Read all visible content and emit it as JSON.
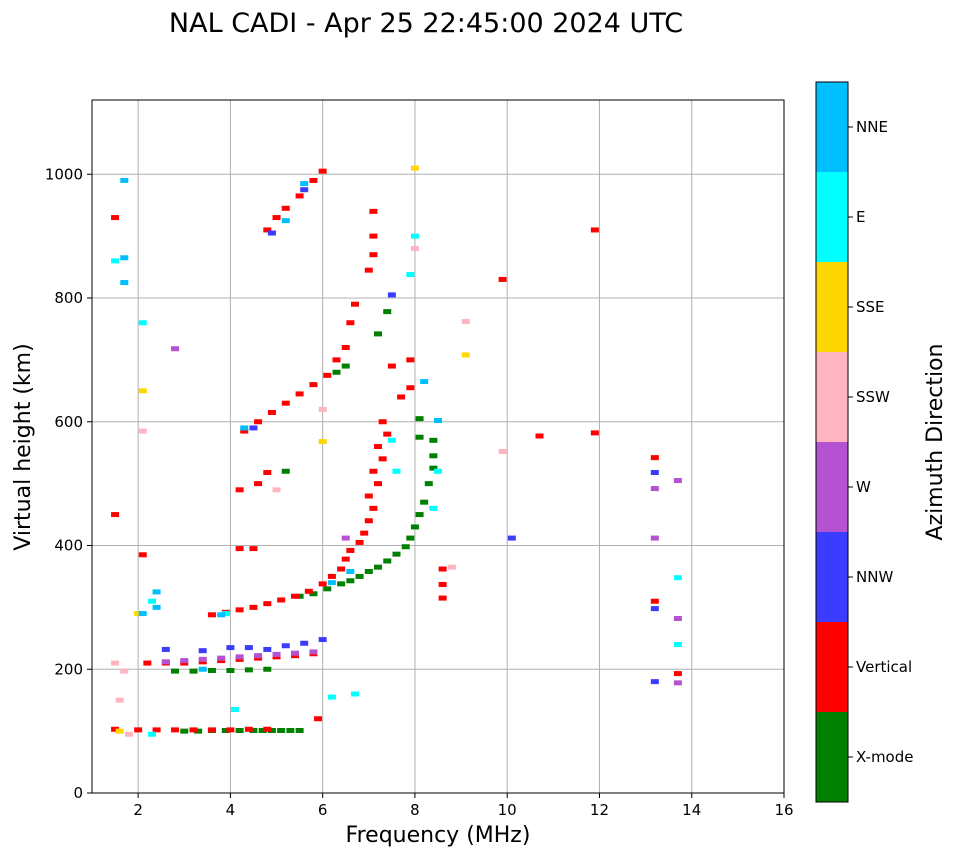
{
  "chart_data": {
    "type": "scatter",
    "title": "NAL CADI - Apr 25 22:45:00 2024 UTC",
    "xlabel": "Frequency (MHz)",
    "ylabel": "Virtual height (km)",
    "xlim": [
      1,
      16
    ],
    "ylim": [
      0,
      1120
    ],
    "xticks": [
      2,
      4,
      6,
      8,
      10,
      12,
      14,
      16
    ],
    "yticks": [
      0,
      200,
      400,
      600,
      800,
      1000
    ],
    "grid": true,
    "colorbar": {
      "label": "Azimuth Direction",
      "categories": [
        {
          "name": "X-mode",
          "color": "#008000"
        },
        {
          "name": "Vertical",
          "color": "#ff0000"
        },
        {
          "name": "NNW",
          "color": "#3c3cff"
        },
        {
          "name": "W",
          "color": "#b452d2"
        },
        {
          "name": "SSW",
          "color": "#ffb4c1"
        },
        {
          "name": "SSE",
          "color": "#ffd700"
        },
        {
          "name": "E",
          "color": "#00ffff"
        },
        {
          "name": "NNE",
          "color": "#00bfff"
        }
      ]
    },
    "series": [
      {
        "name": "X-mode",
        "points": [
          [
            3.0,
            100
          ],
          [
            3.3,
            100
          ],
          [
            3.6,
            101
          ],
          [
            3.9,
            101
          ],
          [
            4.2,
            101
          ],
          [
            4.5,
            101
          ],
          [
            4.7,
            101
          ],
          [
            4.9,
            101
          ],
          [
            5.1,
            101
          ],
          [
            5.3,
            101
          ],
          [
            5.5,
            101
          ],
          [
            2.8,
            197
          ],
          [
            3.2,
            197
          ],
          [
            3.6,
            198
          ],
          [
            4.0,
            198
          ],
          [
            4.4,
            199
          ],
          [
            4.8,
            200
          ],
          [
            5.5,
            318
          ],
          [
            5.8,
            322
          ],
          [
            6.1,
            330
          ],
          [
            6.4,
            338
          ],
          [
            6.6,
            343
          ],
          [
            6.8,
            350
          ],
          [
            7.0,
            358
          ],
          [
            7.2,
            365
          ],
          [
            7.4,
            375
          ],
          [
            7.6,
            386
          ],
          [
            7.8,
            398
          ],
          [
            7.9,
            412
          ],
          [
            8.0,
            430
          ],
          [
            8.1,
            450
          ],
          [
            8.2,
            470
          ],
          [
            8.3,
            500
          ],
          [
            8.4,
            525
          ],
          [
            8.4,
            545
          ],
          [
            8.4,
            570
          ],
          [
            8.1,
            575
          ],
          [
            6.5,
            690
          ],
          [
            6.3,
            680
          ],
          [
            7.2,
            742
          ],
          [
            7.4,
            778
          ],
          [
            8.1,
            605
          ],
          [
            5.2,
            520
          ]
        ]
      },
      {
        "name": "Vertical",
        "points": [
          [
            1.5,
            103
          ],
          [
            2.0,
            102
          ],
          [
            2.4,
            102
          ],
          [
            2.8,
            102
          ],
          [
            3.2,
            102
          ],
          [
            3.6,
            102
          ],
          [
            4.0,
            102
          ],
          [
            4.4,
            103
          ],
          [
            4.8,
            103
          ],
          [
            2.2,
            210
          ],
          [
            2.6,
            210
          ],
          [
            3.0,
            210
          ],
          [
            3.4,
            212
          ],
          [
            3.8,
            214
          ],
          [
            4.2,
            216
          ],
          [
            4.6,
            218
          ],
          [
            5.0,
            220
          ],
          [
            5.4,
            222
          ],
          [
            5.8,
            225
          ],
          [
            3.6,
            288
          ],
          [
            3.9,
            292
          ],
          [
            4.2,
            296
          ],
          [
            4.5,
            300
          ],
          [
            4.8,
            306
          ],
          [
            5.1,
            312
          ],
          [
            5.4,
            318
          ],
          [
            5.7,
            326
          ],
          [
            6.0,
            338
          ],
          [
            6.2,
            350
          ],
          [
            6.4,
            362
          ],
          [
            6.5,
            378
          ],
          [
            6.6,
            392
          ],
          [
            6.8,
            405
          ],
          [
            6.9,
            420
          ],
          [
            7.0,
            440
          ],
          [
            7.1,
            460
          ],
          [
            7.0,
            480
          ],
          [
            7.2,
            500
          ],
          [
            7.1,
            520
          ],
          [
            7.3,
            540
          ],
          [
            7.2,
            560
          ],
          [
            7.4,
            580
          ],
          [
            7.3,
            600
          ],
          [
            4.3,
            585
          ],
          [
            4.6,
            600
          ],
          [
            4.9,
            615
          ],
          [
            5.2,
            630
          ],
          [
            5.5,
            645
          ],
          [
            5.8,
            660
          ],
          [
            6.1,
            675
          ],
          [
            6.3,
            700
          ],
          [
            6.5,
            720
          ],
          [
            6.6,
            760
          ],
          [
            6.7,
            790
          ],
          [
            7.0,
            845
          ],
          [
            7.1,
            870
          ],
          [
            7.1,
            900
          ],
          [
            7.1,
            940
          ],
          [
            4.8,
            910
          ],
          [
            5.0,
            930
          ],
          [
            5.2,
            945
          ],
          [
            5.5,
            965
          ],
          [
            5.8,
            990
          ],
          [
            6.0,
            1005
          ],
          [
            1.5,
            930
          ],
          [
            1.5,
            450
          ],
          [
            2.1,
            385
          ],
          [
            4.2,
            490
          ],
          [
            4.2,
            395
          ],
          [
            4.5,
            395
          ],
          [
            4.6,
            500
          ],
          [
            4.8,
            518
          ],
          [
            7.5,
            690
          ],
          [
            7.7,
            640
          ],
          [
            7.9,
            700
          ],
          [
            7.9,
            655
          ],
          [
            8.6,
            362
          ],
          [
            8.6,
            337
          ],
          [
            8.6,
            315
          ],
          [
            9.9,
            830
          ],
          [
            10.7,
            577
          ],
          [
            11.9,
            910
          ],
          [
            11.9,
            582
          ],
          [
            13.2,
            542
          ],
          [
            13.2,
            310
          ],
          [
            13.7,
            193
          ],
          [
            5.9,
            120
          ]
        ]
      },
      {
        "name": "NNW",
        "points": [
          [
            4.0,
            235
          ],
          [
            4.4,
            235
          ],
          [
            4.8,
            232
          ],
          [
            5.2,
            238
          ],
          [
            5.6,
            242
          ],
          [
            6.0,
            248
          ],
          [
            3.4,
            230
          ],
          [
            2.6,
            232
          ],
          [
            4.5,
            590
          ],
          [
            4.9,
            905
          ],
          [
            5.6,
            975
          ],
          [
            7.5,
            805
          ],
          [
            10.1,
            412
          ],
          [
            13.2,
            518
          ],
          [
            13.2,
            298
          ],
          [
            13.2,
            180
          ]
        ]
      },
      {
        "name": "W",
        "points": [
          [
            2.6,
            212
          ],
          [
            3.0,
            214
          ],
          [
            3.4,
            216
          ],
          [
            3.8,
            218
          ],
          [
            4.2,
            220
          ],
          [
            4.6,
            222
          ],
          [
            5.0,
            224
          ],
          [
            5.4,
            226
          ],
          [
            5.8,
            228
          ],
          [
            2.8,
            718
          ],
          [
            6.5,
            412
          ],
          [
            13.2,
            492
          ],
          [
            13.7,
            505
          ],
          [
            13.7,
            282
          ],
          [
            13.7,
            178
          ],
          [
            13.2,
            412
          ]
        ]
      },
      {
        "name": "SSW",
        "points": [
          [
            1.5,
            210
          ],
          [
            1.7,
            197
          ],
          [
            1.6,
            150
          ],
          [
            1.8,
            95
          ],
          [
            2.1,
            585
          ],
          [
            8.0,
            880
          ],
          [
            9.1,
            762
          ],
          [
            9.9,
            552
          ],
          [
            8.8,
            365
          ],
          [
            5.0,
            490
          ],
          [
            6.0,
            620
          ]
        ]
      },
      {
        "name": "SSE",
        "points": [
          [
            1.6,
            100
          ],
          [
            2.1,
            650
          ],
          [
            8.0,
            1010
          ],
          [
            9.1,
            708
          ],
          [
            6.0,
            568
          ],
          [
            2.0,
            290
          ]
        ]
      },
      {
        "name": "E",
        "points": [
          [
            2.1,
            760
          ],
          [
            1.5,
            860
          ],
          [
            2.3,
            95
          ],
          [
            2.3,
            310
          ],
          [
            4.1,
            135
          ],
          [
            6.2,
            155
          ],
          [
            6.7,
            160
          ],
          [
            7.5,
            570
          ],
          [
            7.6,
            520
          ],
          [
            8.0,
            900
          ],
          [
            8.5,
            520
          ],
          [
            8.4,
            460
          ],
          [
            13.7,
            348
          ],
          [
            13.7,
            240
          ],
          [
            7.9,
            838
          ],
          [
            3.9,
            290
          ]
        ]
      },
      {
        "name": "NNE",
        "points": [
          [
            1.7,
            990
          ],
          [
            1.7,
            865
          ],
          [
            1.7,
            825
          ],
          [
            2.4,
            325
          ],
          [
            2.4,
            300
          ],
          [
            2.1,
            290
          ],
          [
            3.8,
            288
          ],
          [
            4.3,
            590
          ],
          [
            5.2,
            925
          ],
          [
            5.6,
            985
          ],
          [
            6.2,
            340
          ],
          [
            8.2,
            665
          ],
          [
            8.5,
            602
          ],
          [
            6.6,
            358
          ],
          [
            3.4,
            200
          ]
        ]
      }
    ]
  }
}
